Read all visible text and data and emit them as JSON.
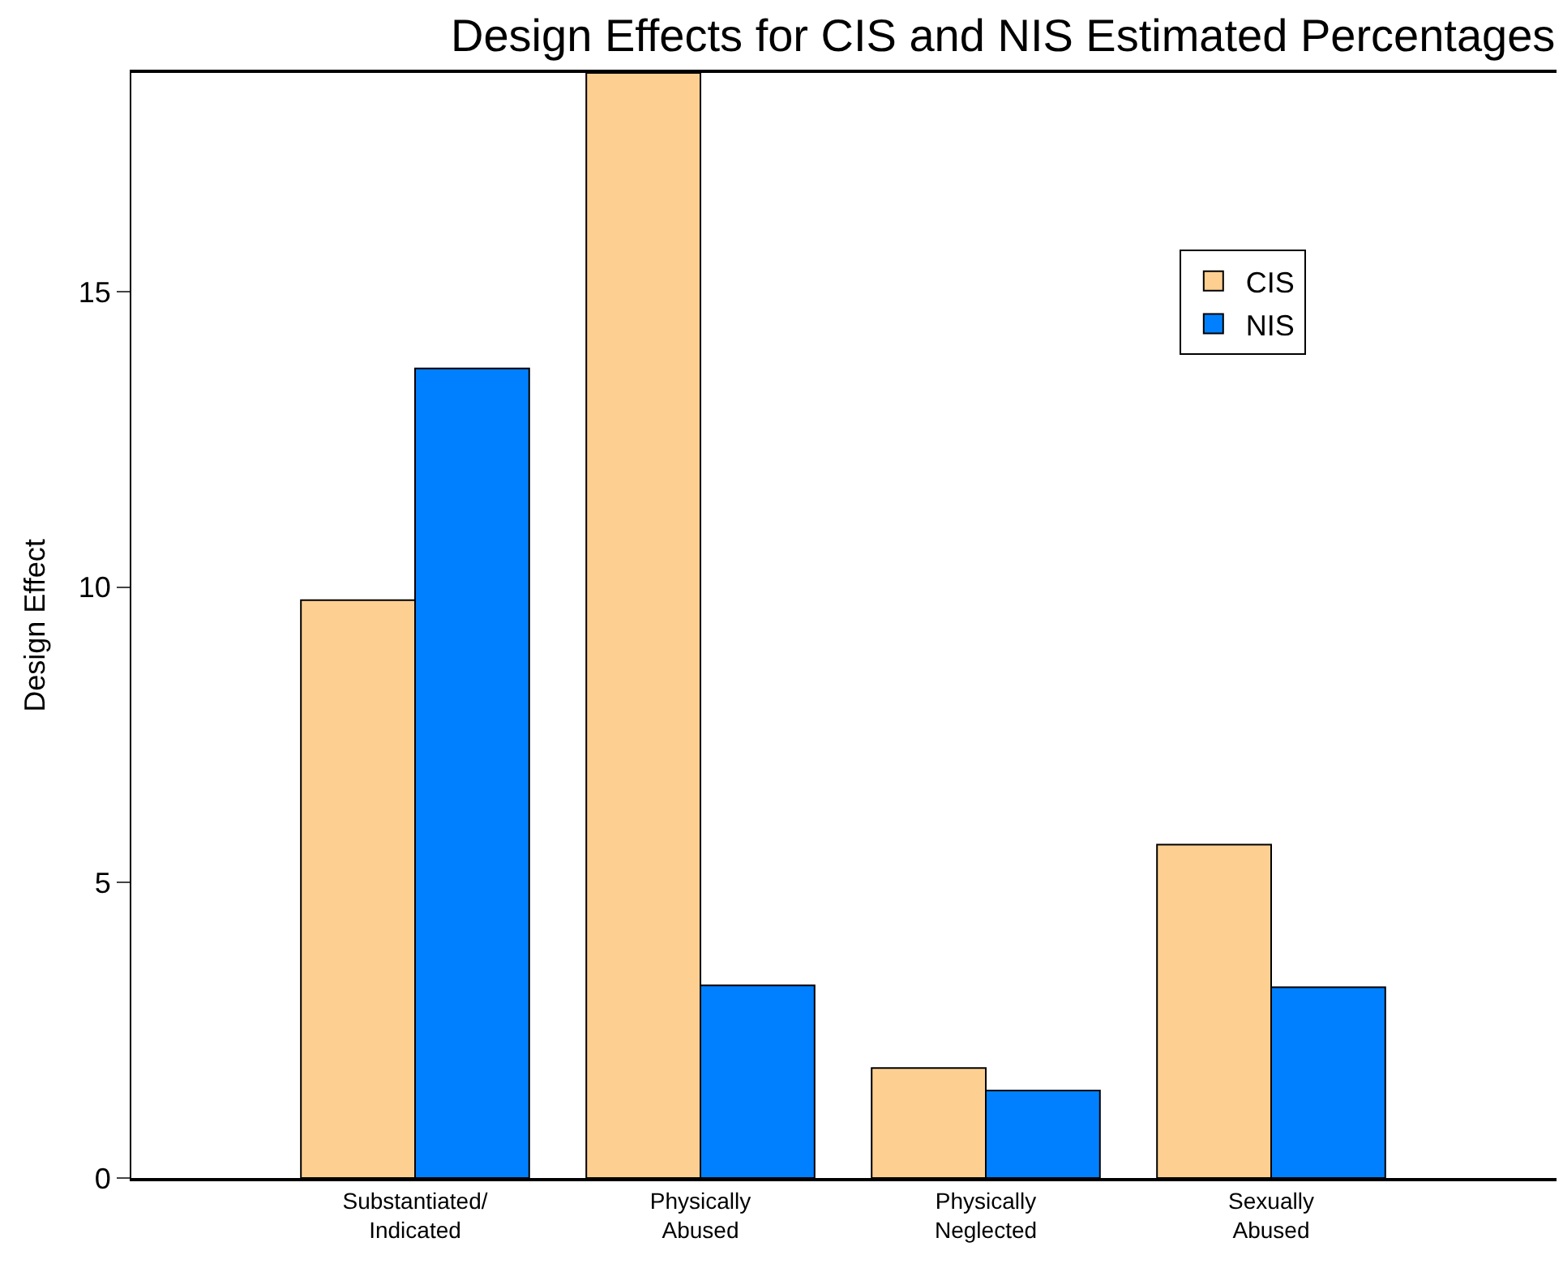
{
  "chart_data": {
    "type": "bar",
    "title": "Design Effects for CIS and NIS Estimated Percentages",
    "ylabel": "Design Effect",
    "categories": [
      "Substantiated/ Indicated",
      "Physically Abused",
      "Physically Neglected",
      "Sexually Abused"
    ],
    "series": [
      {
        "name": "CIS",
        "color": "#fdd092",
        "values": [
          9.78,
          18.7,
          1.86,
          5.64
        ]
      },
      {
        "name": "NIS",
        "color": "#0080ff",
        "values": [
          13.7,
          3.26,
          1.48,
          3.23
        ]
      }
    ],
    "ylim": [
      0,
      18.7
    ],
    "yticks": [
      0,
      5,
      10,
      15
    ],
    "grid": false,
    "legend": "top right"
  }
}
